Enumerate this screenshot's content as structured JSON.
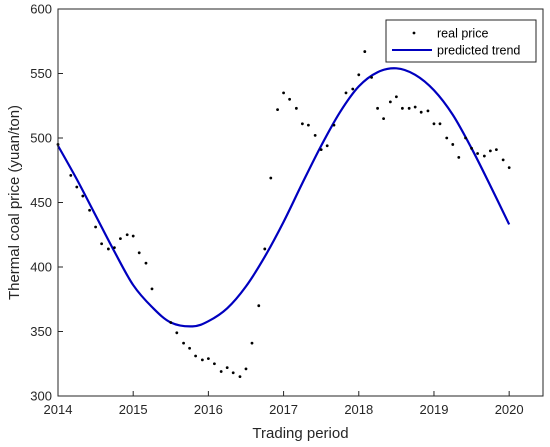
{
  "chart_data": {
    "type": "line",
    "xlabel": "Trading period",
    "ylabel": "Thermal coal price (yuan/ton)",
    "xlim": [
      2014,
      2020.45
    ],
    "ylim": [
      300,
      600
    ],
    "xticks": [
      2014,
      2015,
      2016,
      2017,
      2018,
      2019,
      2020
    ],
    "yticks": [
      300,
      350,
      400,
      450,
      500,
      550,
      600
    ],
    "legend_position": "top-right",
    "grid": false,
    "series": [
      {
        "name": "real price",
        "style": "markers",
        "color": "#000000",
        "points": [
          [
            2014.0,
            495
          ],
          [
            2014.17,
            471
          ],
          [
            2014.25,
            462
          ],
          [
            2014.33,
            455
          ],
          [
            2014.42,
            444
          ],
          [
            2014.5,
            431
          ],
          [
            2014.58,
            418
          ],
          [
            2014.67,
            414
          ],
          [
            2014.75,
            415
          ],
          [
            2014.83,
            422
          ],
          [
            2014.92,
            425
          ],
          [
            2015.0,
            424
          ],
          [
            2015.08,
            411
          ],
          [
            2015.17,
            403
          ],
          [
            2015.25,
            383
          ],
          [
            2015.5,
            357
          ],
          [
            2015.58,
            349
          ],
          [
            2015.67,
            341
          ],
          [
            2015.75,
            337
          ],
          [
            2015.83,
            331
          ],
          [
            2015.92,
            328
          ],
          [
            2016.0,
            329
          ],
          [
            2016.08,
            325
          ],
          [
            2016.17,
            319
          ],
          [
            2016.25,
            322
          ],
          [
            2016.33,
            318
          ],
          [
            2016.42,
            315
          ],
          [
            2016.5,
            321
          ],
          [
            2016.58,
            341
          ],
          [
            2016.67,
            370
          ],
          [
            2016.75,
            414
          ],
          [
            2016.83,
            469
          ],
          [
            2016.92,
            522
          ],
          [
            2017.0,
            535
          ],
          [
            2017.08,
            530
          ],
          [
            2017.17,
            523
          ],
          [
            2017.25,
            511
          ],
          [
            2017.33,
            510
          ],
          [
            2017.42,
            502
          ],
          [
            2017.5,
            491
          ],
          [
            2017.58,
            494
          ],
          [
            2017.67,
            510
          ],
          [
            2017.83,
            535
          ],
          [
            2017.92,
            538
          ],
          [
            2018.0,
            549
          ],
          [
            2018.08,
            567
          ],
          [
            2018.17,
            547
          ],
          [
            2018.25,
            523
          ],
          [
            2018.33,
            515
          ],
          [
            2018.42,
            528
          ],
          [
            2018.5,
            532
          ],
          [
            2018.58,
            523
          ],
          [
            2018.67,
            523
          ],
          [
            2018.75,
            524
          ],
          [
            2018.83,
            520
          ],
          [
            2018.92,
            521
          ],
          [
            2019.0,
            511
          ],
          [
            2019.08,
            511
          ],
          [
            2019.17,
            500
          ],
          [
            2019.25,
            495
          ],
          [
            2019.33,
            485
          ],
          [
            2019.42,
            500
          ],
          [
            2019.5,
            492
          ],
          [
            2019.58,
            488
          ],
          [
            2019.67,
            486
          ],
          [
            2019.75,
            490
          ],
          [
            2019.83,
            491
          ],
          [
            2019.92,
            483
          ],
          [
            2020.0,
            477
          ]
        ]
      },
      {
        "name": "predicted trend",
        "style": "line",
        "color": "#0000bf",
        "points": [
          [
            2014.0,
            494
          ],
          [
            2014.25,
            468
          ],
          [
            2014.5,
            440
          ],
          [
            2014.75,
            412
          ],
          [
            2015.0,
            386
          ],
          [
            2015.25,
            369
          ],
          [
            2015.5,
            357
          ],
          [
            2015.79,
            354
          ],
          [
            2016.0,
            358
          ],
          [
            2016.25,
            368
          ],
          [
            2016.5,
            385
          ],
          [
            2016.75,
            408
          ],
          [
            2017.0,
            435
          ],
          [
            2017.25,
            465
          ],
          [
            2017.5,
            494
          ],
          [
            2017.75,
            520
          ],
          [
            2018.0,
            540
          ],
          [
            2018.25,
            551
          ],
          [
            2018.5,
            554
          ],
          [
            2018.75,
            549
          ],
          [
            2019.0,
            537
          ],
          [
            2019.25,
            518
          ],
          [
            2019.5,
            492
          ],
          [
            2019.75,
            463
          ],
          [
            2020.0,
            433
          ]
        ]
      }
    ]
  }
}
